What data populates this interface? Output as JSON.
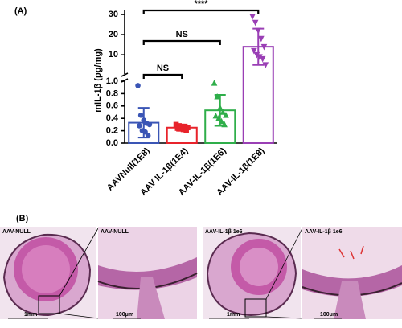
{
  "panel_a_label": "(A)",
  "chart_data": {
    "type": "bar",
    "y_label": "mIL-1β (pg/mg)",
    "categories": [
      "AAVNull(1E8)",
      "AAV IL-1β(1E4)",
      "AAV-IL-1β(1E6)",
      "AAV-IL-1β(1E8)"
    ],
    "colors": [
      "#3a55b5",
      "#e8232b",
      "#2fae4a",
      "#9a3fb5"
    ],
    "markers": [
      "circle",
      "square",
      "triangle",
      "triangle-down"
    ],
    "values": [
      0.33,
      0.25,
      0.53,
      14
    ],
    "errors": [
      0.24,
      0.05,
      0.25,
      9
    ],
    "points": [
      [
        0.93,
        0.45,
        0.37,
        0.32,
        0.3,
        0.28,
        0.2,
        0.18,
        0.12
      ],
      [
        0.3,
        0.28,
        0.27,
        0.26,
        0.25,
        0.24,
        0.23,
        0.22,
        0.2
      ],
      [
        0.97,
        0.75,
        0.57,
        0.5,
        0.45,
        0.44,
        0.4,
        0.35,
        0.3
      ],
      [
        29,
        26,
        22,
        18,
        14,
        12,
        10,
        9,
        8,
        5
      ]
    ],
    "segments": [
      {
        "ylim": [
          0,
          1.0
        ],
        "yticks": [
          {
            "value": 0,
            "label": "0.0"
          },
          0.2,
          0.4,
          0.6,
          0.8,
          {
            "value": 1.0,
            "label": "1.0"
          }
        ]
      },
      {
        "ylim": [
          0.5,
          32
        ],
        "yticks": [
          10,
          20,
          30
        ]
      }
    ],
    "annotations": [
      {
        "groups": [
          0,
          3
        ],
        "text": "****"
      },
      {
        "groups": [
          0,
          2
        ],
        "text": "NS"
      },
      {
        "groups": [
          0,
          1
        ],
        "text": "NS"
      }
    ]
  },
  "panel_b": {
    "label": "(B)",
    "images": [
      {
        "title": "AAV-NULL",
        "scale": "1mm"
      },
      {
        "title": "AAV-NULL",
        "scale": "100μm"
      },
      {
        "title": "AAV-IL-1β 1e6",
        "scale": "1mm"
      },
      {
        "title": "AAV-IL-1β 1e6",
        "scale": "100μm"
      }
    ]
  }
}
